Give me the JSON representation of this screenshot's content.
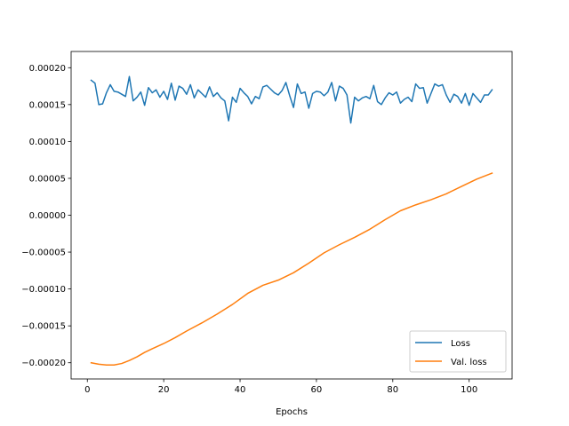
{
  "chart_data": {
    "type": "line",
    "title": "",
    "xlabel": "Epochs",
    "ylabel": "",
    "xlim": [
      -4.25,
      111.25
    ],
    "ylim": [
      -0.000222,
      0.000222
    ],
    "x_ticks": [
      0,
      20,
      40,
      60,
      80,
      100
    ],
    "x_tick_labels": [
      "0",
      "20",
      "40",
      "60",
      "80",
      "100"
    ],
    "y_ticks": [
      -0.0002,
      -0.00015,
      -0.0001,
      -5e-05,
      0.0,
      5e-05,
      0.0001,
      0.00015,
      0.0002
    ],
    "y_tick_labels": [
      "−0.00020",
      "−0.00015",
      "−0.00010",
      "−0.00005",
      "0.00000",
      "0.00005",
      "0.00010",
      "0.00015",
      "0.00020"
    ],
    "grid": false,
    "legend_position": "lower-right",
    "series": [
      {
        "name": "Loss",
        "color": "#1f77b4",
        "x": [
          1,
          2,
          3,
          4,
          5,
          6,
          7,
          8,
          9,
          10,
          11,
          12,
          13,
          14,
          15,
          16,
          17,
          18,
          19,
          20,
          21,
          22,
          23,
          24,
          25,
          26,
          27,
          28,
          29,
          30,
          31,
          32,
          33,
          34,
          35,
          36,
          37,
          38,
          39,
          40,
          41,
          42,
          43,
          44,
          45,
          46,
          47,
          48,
          49,
          50,
          51,
          52,
          53,
          54,
          55,
          56,
          57,
          58,
          59,
          60,
          61,
          62,
          63,
          64,
          65,
          66,
          67,
          68,
          69,
          70,
          71,
          72,
          73,
          74,
          75,
          76,
          77,
          78,
          79,
          80,
          81,
          82,
          83,
          84,
          85,
          86,
          87,
          88,
          89,
          90,
          91,
          92,
          93,
          94,
          95,
          96,
          97,
          98,
          99,
          100,
          101,
          102,
          103,
          104,
          105,
          106
        ],
        "values": [
          0.000183,
          0.000179,
          0.00015,
          0.000151,
          0.000166,
          0.000177,
          0.000168,
          0.000167,
          0.000164,
          0.000161,
          0.000188,
          0.000155,
          0.00016,
          0.000167,
          0.000149,
          0.000173,
          0.000166,
          0.00017,
          0.00016,
          0.000168,
          0.000157,
          0.000179,
          0.000156,
          0.000175,
          0.000172,
          0.000164,
          0.000177,
          0.000159,
          0.00017,
          0.000165,
          0.00016,
          0.000174,
          0.000161,
          0.000166,
          0.000159,
          0.000155,
          0.000128,
          0.00016,
          0.000153,
          0.000172,
          0.000166,
          0.000161,
          0.000151,
          0.000161,
          0.000158,
          0.000174,
          0.000176,
          0.000171,
          0.000166,
          0.000163,
          0.000169,
          0.00018,
          0.000162,
          0.000146,
          0.000178,
          0.000165,
          0.000167,
          0.000145,
          0.000165,
          0.000168,
          0.000167,
          0.000162,
          0.000167,
          0.00018,
          0.000155,
          0.000175,
          0.000172,
          0.000163,
          0.000125,
          0.00016,
          0.000155,
          0.000159,
          0.000161,
          0.000158,
          0.000176,
          0.000154,
          0.00015,
          0.000159,
          0.000166,
          0.000163,
          0.000167,
          0.000152,
          0.000157,
          0.00016,
          0.000154,
          0.000178,
          0.000172,
          0.000173,
          0.000152,
          0.000165,
          0.000178,
          0.000175,
          0.000177,
          0.000163,
          0.000153,
          0.000164,
          0.000161,
          0.000152,
          0.000165,
          0.000149,
          0.000165,
          0.000159,
          0.000153,
          0.000163,
          0.000163,
          0.00017
        ]
      },
      {
        "name": "Val. loss",
        "color": "#ff7f0e",
        "x": [
          1,
          3,
          5,
          7,
          9,
          11,
          13,
          15,
          17,
          20,
          23,
          26,
          30,
          34,
          38,
          42,
          46,
          50,
          54,
          58,
          62,
          66,
          70,
          74,
          78,
          82,
          86,
          90,
          94,
          98,
          102,
          106
        ],
        "values": [
          -0.0002,
          -0.000202,
          -0.000203,
          -0.000203,
          -0.000201,
          -0.000197,
          -0.000192,
          -0.000186,
          -0.000181,
          -0.000174,
          -0.000166,
          -0.000157,
          -0.000146,
          -0.000134,
          -0.000121,
          -0.000106,
          -9.5e-05,
          -8.8e-05,
          -7.8e-05,
          -6.5e-05,
          -5.1e-05,
          -4e-05,
          -3e-05,
          -1.9e-05,
          -6e-06,
          6e-06,
          1.4e-05,
          2.1e-05,
          2.9e-05,
          3.9e-05,
          4.9e-05,
          5.7e-05
        ]
      }
    ]
  }
}
